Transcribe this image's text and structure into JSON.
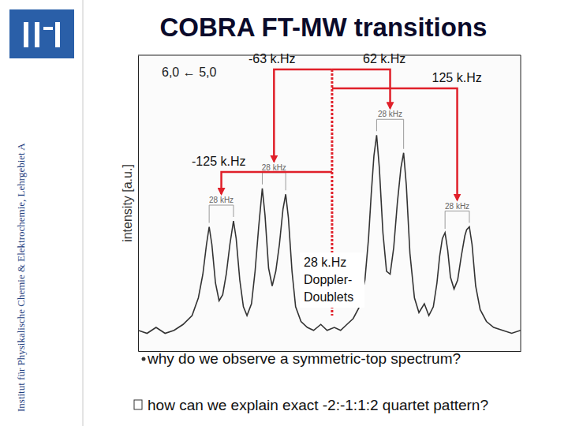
{
  "slide": {
    "title": "COBRA FT-MW transitions",
    "sidebar": "Institut für Physikalische Chemie & Elektrochemie, Lehrgebiet A",
    "labels": {
      "minus63": "-63 k.Hz",
      "plus62": "62 k.Hz",
      "plus125": "125 k.Hz",
      "minus125": "-125 k.Hz",
      "doppler": [
        "28 k.Hz",
        "Doppler-",
        "Doublets"
      ]
    },
    "questions": [
      "why do we observe a symmetric-top spectrum?",
      "how can we explain exact -2:-1:1:2 quartet pattern?"
    ]
  },
  "chart_data": {
    "type": "line",
    "y_label": "intensity [a.u.]",
    "transition": "6,0 ← 5,0",
    "doublet_labels": [
      "28 kHz",
      "28 kHz",
      "28 kHz",
      "28 kHz"
    ],
    "x": [
      -215,
      -205,
      -195,
      -185,
      -175,
      -165,
      -155,
      -148,
      -143,
      -139,
      -136,
      -133,
      -129,
      -125,
      -121,
      -117,
      -113,
      -109,
      -106,
      -102,
      -98,
      -94,
      -89,
      -85,
      -81,
      -77,
      -74,
      -70,
      -66,
      -62,
      -58,
      -54,
      -51,
      -48,
      -44,
      -40,
      -34,
      -27,
      -20,
      -12,
      -5,
      3,
      10,
      17,
      24,
      31,
      37,
      41,
      44,
      47,
      50,
      53,
      57,
      61,
      65,
      69,
      73,
      77,
      80,
      83,
      87,
      92,
      97,
      103,
      108,
      113,
      117,
      120,
      123,
      126,
      129,
      132,
      136,
      140,
      144,
      148,
      150,
      153,
      156,
      160,
      165,
      172,
      180,
      190,
      200,
      210
    ],
    "values": [
      0.07,
      0.06,
      0.08,
      0.06,
      0.07,
      0.09,
      0.12,
      0.18,
      0.26,
      0.36,
      0.42,
      0.36,
      0.23,
      0.17,
      0.19,
      0.26,
      0.36,
      0.44,
      0.38,
      0.24,
      0.15,
      0.12,
      0.16,
      0.27,
      0.42,
      0.55,
      0.46,
      0.28,
      0.22,
      0.27,
      0.36,
      0.48,
      0.53,
      0.45,
      0.27,
      0.15,
      0.1,
      0.08,
      0.07,
      0.09,
      0.07,
      0.08,
      0.07,
      0.09,
      0.11,
      0.15,
      0.24,
      0.38,
      0.53,
      0.66,
      0.73,
      0.62,
      0.4,
      0.27,
      0.26,
      0.35,
      0.5,
      0.62,
      0.67,
      0.56,
      0.33,
      0.18,
      0.13,
      0.16,
      0.12,
      0.15,
      0.23,
      0.32,
      0.38,
      0.4,
      0.34,
      0.25,
      0.21,
      0.24,
      0.32,
      0.39,
      0.41,
      0.42,
      0.36,
      0.22,
      0.14,
      0.1,
      0.08,
      0.07,
      0.06,
      0.07
    ],
    "xlim": [
      -215,
      210
    ],
    "ylim": [
      0,
      1
    ],
    "tick_labels": false,
    "color": "#333333"
  }
}
